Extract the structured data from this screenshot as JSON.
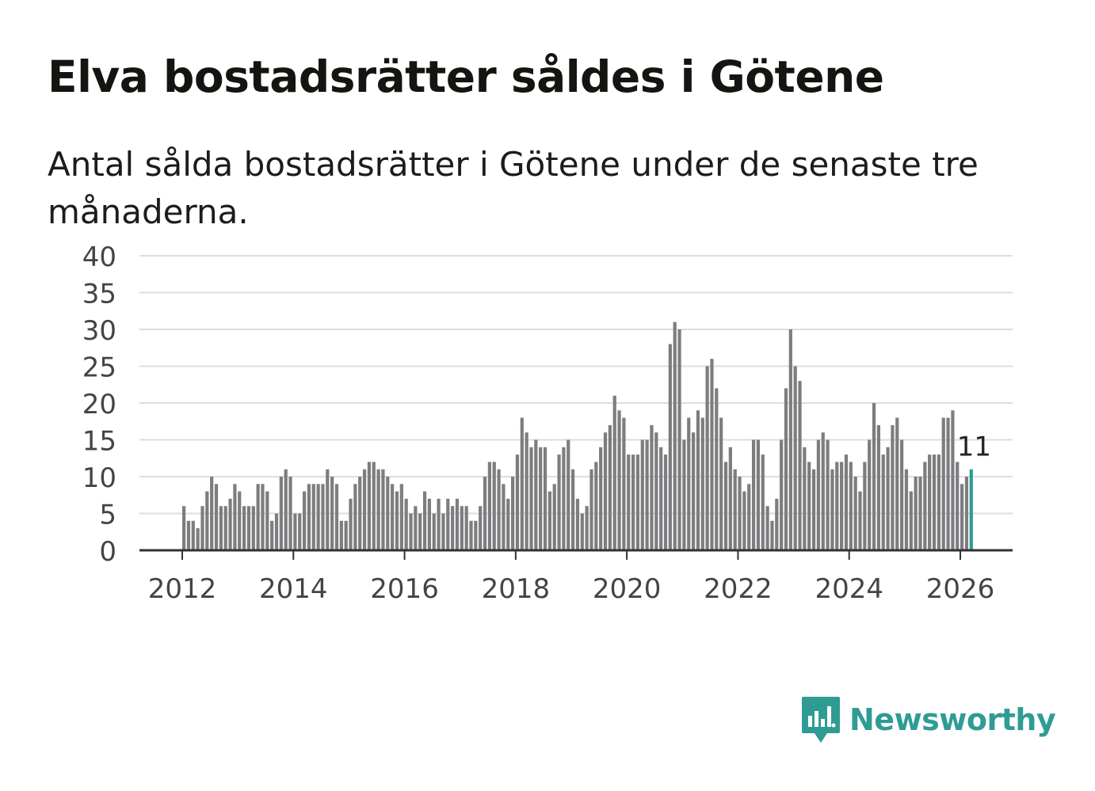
{
  "title": "Elva bostadsrätter såldes i Götene",
  "subtitle": "Antal sålda bostadsrätter i Götene under de senaste tre månaderna.",
  "brand": {
    "name": "Newsworthy",
    "color": "#2f9c94",
    "icon": "newsworthy-logo-icon"
  },
  "colors": {
    "bar": "#7d7d80",
    "highlight": "#2a9d93",
    "grid": "#dddddd",
    "axis": "#333333",
    "tick_text": "#444444"
  },
  "chart_data": {
    "type": "bar",
    "title": "Elva bostadsrätter såldes i Götene",
    "xlabel": "",
    "ylabel": "",
    "ylim": [
      0,
      40
    ],
    "yticks": [
      0,
      5,
      10,
      15,
      20,
      25,
      30,
      35,
      40
    ],
    "xticks": [
      "2012",
      "2014",
      "2016",
      "2018",
      "2020",
      "2022",
      "2024",
      "2026"
    ],
    "x_start": "2012-01",
    "x_end": "2026-03",
    "grid": true,
    "highlight_label": "11",
    "values": [
      6,
      4,
      4,
      3,
      6,
      8,
      10,
      9,
      6,
      6,
      7,
      9,
      8,
      6,
      6,
      6,
      9,
      9,
      8,
      4,
      5,
      10,
      11,
      10,
      5,
      5,
      8,
      9,
      9,
      9,
      9,
      11,
      10,
      9,
      4,
      4,
      7,
      9,
      10,
      11,
      12,
      12,
      11,
      11,
      10,
      9,
      8,
      9,
      7,
      5,
      6,
      5,
      8,
      7,
      5,
      7,
      5,
      7,
      6,
      7,
      6,
      6,
      4,
      4,
      6,
      10,
      12,
      12,
      11,
      9,
      7,
      10,
      13,
      18,
      16,
      14,
      15,
      14,
      14,
      8,
      9,
      13,
      14,
      15,
      11,
      7,
      5,
      6,
      11,
      12,
      14,
      16,
      17,
      21,
      19,
      18,
      13,
      13,
      13,
      15,
      15,
      17,
      16,
      14,
      13,
      28,
      31,
      30,
      15,
      18,
      16,
      19,
      18,
      25,
      26,
      22,
      18,
      12,
      14,
      11,
      10,
      8,
      9,
      15,
      15,
      13,
      6,
      4,
      7,
      15,
      22,
      30,
      25,
      23,
      14,
      12,
      11,
      15,
      16,
      15,
      11,
      12,
      12,
      13,
      12,
      10,
      8,
      12,
      15,
      20,
      17,
      13,
      14,
      17,
      18,
      15,
      11,
      8,
      10,
      10,
      12,
      13,
      13,
      13,
      18,
      18,
      19,
      12,
      9,
      10,
      11
    ]
  }
}
